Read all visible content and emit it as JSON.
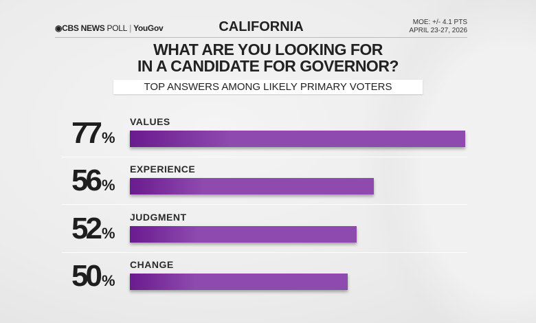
{
  "header": {
    "logo_brand": "CBS NEWS",
    "logo_poll": "POLL",
    "logo_partner": "YouGov",
    "state": "CALIFORNIA",
    "moe": "MOE: +/- 4.1 PTS",
    "dates": "APRIL 23-27, 2026"
  },
  "chart_data": {
    "type": "bar",
    "title": "WHAT ARE YOU LOOKING FOR IN A CANDIDATE FOR GOVERNOR?",
    "title_line1": "WHAT ARE YOU LOOKING FOR",
    "title_line2": "IN A CANDIDATE FOR GOVERNOR?",
    "subtitle": "TOP ANSWERS AMONG LIKELY PRIMARY VOTERS",
    "orientation": "horizontal",
    "categories": [
      "VALUES",
      "EXPERIENCE",
      "JUDGMENT",
      "CHANGE"
    ],
    "values": [
      77,
      56,
      52,
      50
    ],
    "value_labels": [
      "77",
      "56",
      "52",
      "50"
    ],
    "unit": "%",
    "bar_color": "#8e4aaf",
    "xlim": [
      0,
      77
    ]
  }
}
